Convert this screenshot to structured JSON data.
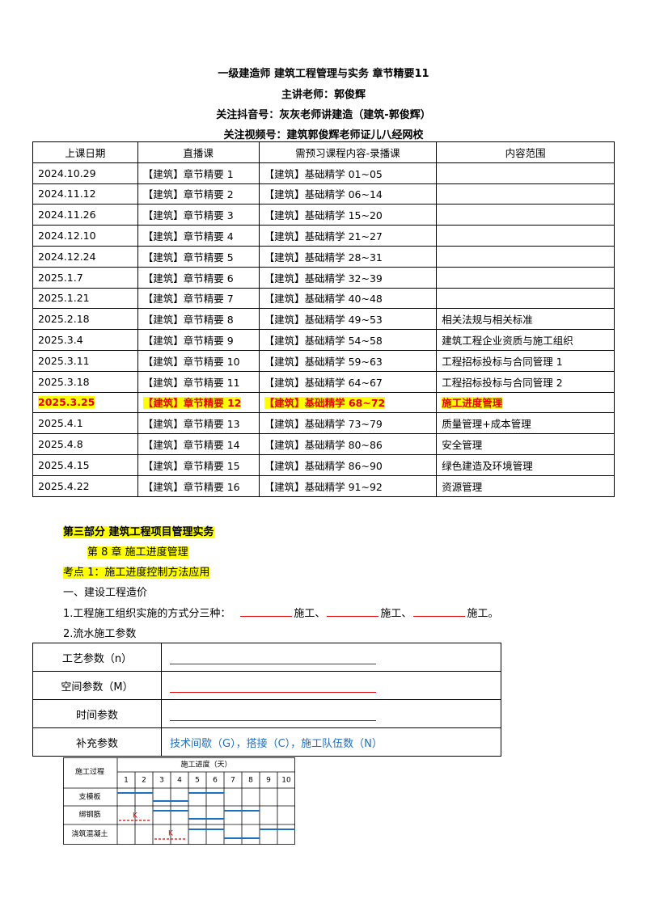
{
  "header": {
    "title": "一级建造师 建筑工程管理与实务 章节精要11",
    "teacher": "主讲老师：郭俊辉",
    "douyin": "关注抖音号：灰灰老师讲建造（建筑-郭俊辉）",
    "video": "关注视频号：建筑郭俊辉老师证儿八经网校"
  },
  "schedule": {
    "columns": [
      "上课日期",
      "直播课",
      "需预习课程内容-录播课",
      "内容范围"
    ],
    "highlight_row": 11,
    "rows": [
      [
        "2024.10.29",
        "【建筑】章节精要 1",
        "【建筑】基础精学 01~05",
        ""
      ],
      [
        "2024.11.12",
        "【建筑】章节精要 2",
        "【建筑】基础精学 06~14",
        ""
      ],
      [
        "2024.11.26",
        "【建筑】章节精要 3",
        "【建筑】基础精学 15~20",
        ""
      ],
      [
        "2024.12.10",
        "【建筑】章节精要 4",
        "【建筑】基础精学 21~27",
        ""
      ],
      [
        "2024.12.24",
        "【建筑】章节精要 5",
        "【建筑】基础精学 28~31",
        ""
      ],
      [
        "2025.1.7",
        "【建筑】章节精要 6",
        "【建筑】基础精学 32~39",
        ""
      ],
      [
        "2025.1.21",
        "【建筑】章节精要 7",
        "【建筑】基础精学 40~48",
        ""
      ],
      [
        "2025.2.18",
        "【建筑】章节精要 8",
        "【建筑】基础精学 49~53",
        "相关法规与相关标准"
      ],
      [
        "2025.3.4",
        "【建筑】章节精要 9",
        "【建筑】基础精学 54~58",
        "建筑工程企业资质与施工组织"
      ],
      [
        "2025.3.11",
        "【建筑】章节精要 10",
        "【建筑】基础精学 59~63",
        "工程招标投标与合同管理 1"
      ],
      [
        "2025.3.18",
        "【建筑】章节精要 11",
        "【建筑】基础精学 64~67",
        "工程招标投标与合同管理 2"
      ],
      [
        "2025.3.25",
        "【建筑】章节精要 12",
        "【建筑】基础精学 68~72",
        "施工进度管理"
      ],
      [
        "2025.4.1",
        "【建筑】章节精要 13",
        "【建筑】基础精学 73~79",
        "质量管理+成本管理"
      ],
      [
        "2025.4.8",
        "【建筑】章节精要 14",
        "【建筑】基础精学 80~86",
        "安全管理"
      ],
      [
        "2025.4.15",
        "【建筑】章节精要 15",
        "【建筑】基础精学 86~90",
        "绿色建造及环境管理"
      ],
      [
        "2025.4.22",
        "【建筑】章节精要 16",
        "【建筑】基础精学 91~92",
        "资源管理"
      ]
    ]
  },
  "section": {
    "part": "第三部分 建筑工程项目管理实务",
    "chapter": "第 8 章 施工进度管理",
    "key_point": "考点 1：施工进度控制方法应用",
    "heading": "一、建设工程造价",
    "question": {
      "text": "1.工程施工组织实施的方式分三种：",
      "fills": [
        "施工、",
        "施工、",
        "施工。"
      ]
    },
    "subheading": "2.流水施工参数"
  },
  "params": {
    "rows": [
      {
        "label": "工艺参数（n）"
      },
      {
        "label": "空间参数（M）"
      },
      {
        "label": "时间参数"
      },
      {
        "label": "补充参数",
        "value": "技术间歇（G），搭接（C），施工队伍数（N）"
      }
    ]
  },
  "gantt": {
    "corner": "施工过程",
    "header": "施工进度（天）",
    "days": [
      "1",
      "2",
      "3",
      "4",
      "5",
      "6",
      "7",
      "8",
      "9",
      "10"
    ],
    "processes": [
      "支模板",
      "绑钢筋",
      "浇筑混凝土"
    ],
    "k_labels": [
      "K",
      "K"
    ]
  }
}
